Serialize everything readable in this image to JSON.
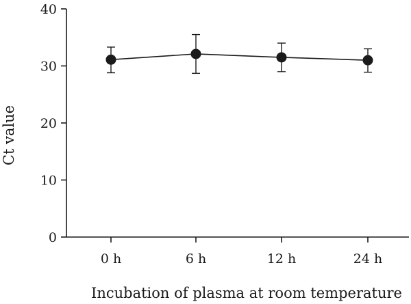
{
  "chart_data": {
    "type": "line",
    "title": "",
    "xlabel": "Incubation of plasma at room temperature",
    "ylabel": "Ct value",
    "categories": [
      "0 h",
      "6 h",
      "12 h",
      "24 h"
    ],
    "yticks": [
      "0",
      "10",
      "20",
      "30",
      "40"
    ],
    "ylim": [
      0,
      40
    ],
    "grid": false,
    "series": [
      {
        "values": [
          31.1,
          32.1,
          31.5,
          31.0
        ],
        "error_low": [
          28.8,
          28.7,
          29.0,
          28.9
        ],
        "error_high": [
          33.3,
          35.5,
          34.0,
          33.0
        ]
      }
    ]
  }
}
